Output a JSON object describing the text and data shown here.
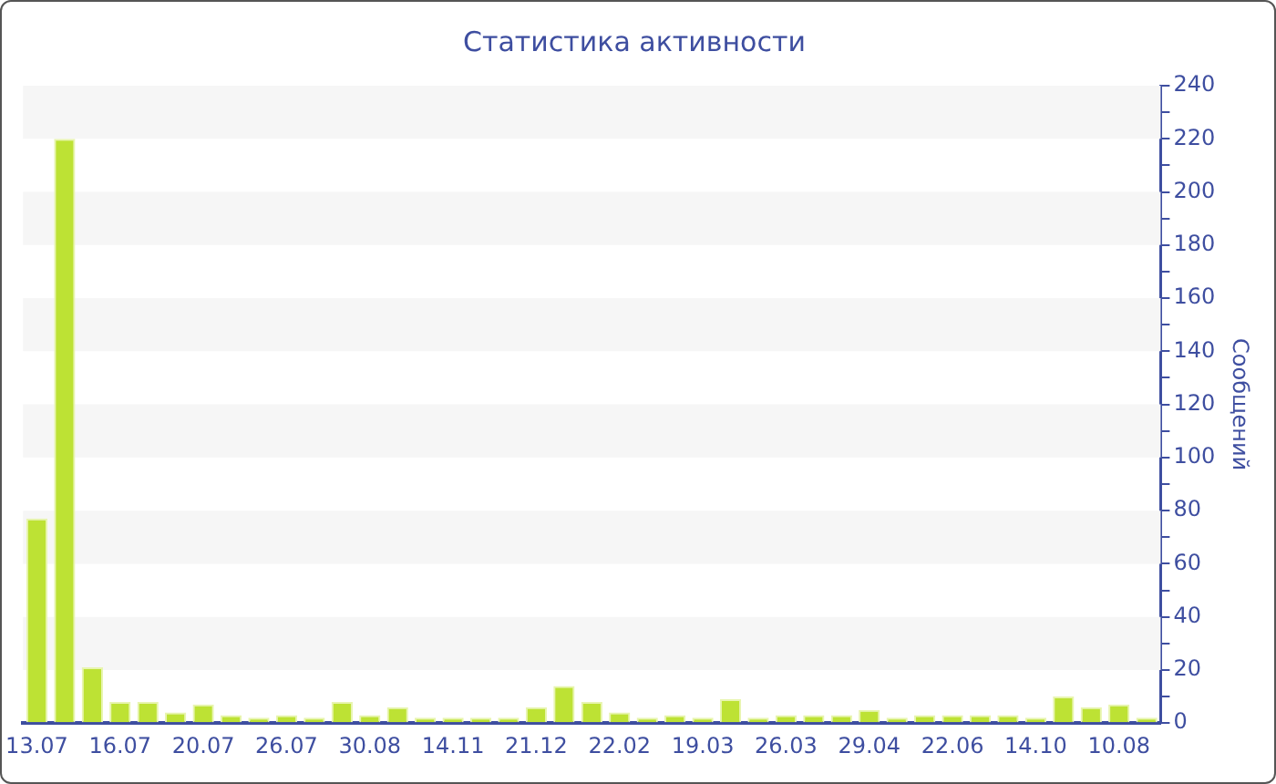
{
  "chart_data": {
    "type": "bar",
    "title": "Статистика активности",
    "ylabel": "Сообщений",
    "categories": [
      "13.07",
      null,
      null,
      "16.07",
      null,
      null,
      "20.07",
      null,
      null,
      "26.07",
      null,
      null,
      "30.08",
      null,
      null,
      "14.11",
      null,
      null,
      "21.12",
      null,
      null,
      "22.02",
      null,
      null,
      "19.03",
      null,
      null,
      "26.03",
      null,
      null,
      "29.04",
      null,
      null,
      "22.06",
      null,
      null,
      "14.10",
      null,
      null,
      "10.08",
      null
    ],
    "values": [
      77,
      220,
      21,
      8,
      8,
      4,
      7,
      3,
      2,
      3,
      2,
      8,
      3,
      6,
      2,
      2,
      2,
      2,
      6,
      14,
      8,
      4,
      2,
      3,
      2,
      9,
      2,
      3,
      3,
      3,
      5,
      2,
      3,
      3,
      3,
      3,
      2,
      10,
      6,
      7,
      2
    ],
    "color": "#bde234",
    "ylim": [
      0,
      240
    ],
    "yticks": [
      0,
      {
        "value": 10,
        "label": null
      },
      20,
      {
        "value": 30,
        "label": null
      },
      40,
      {
        "value": 50,
        "label": null
      },
      60,
      {
        "value": 70,
        "label": null
      },
      80,
      {
        "value": 90,
        "label": null
      },
      100,
      {
        "value": 110,
        "label": null
      },
      120,
      {
        "value": 130,
        "label": null
      },
      140,
      {
        "value": 150,
        "label": null
      },
      160,
      {
        "value": 170,
        "label": null
      },
      180,
      {
        "value": 190,
        "label": null
      },
      200,
      {
        "value": 210,
        "label": null
      },
      220,
      {
        "value": 230,
        "label": null
      },
      240
    ],
    "bands": [
      {
        "axis": "y",
        "from": 220,
        "to": 240,
        "color": "#f6f6f6"
      },
      {
        "axis": "y",
        "from": 180,
        "to": 200,
        "color": "#f6f6f6"
      },
      {
        "axis": "y",
        "from": 140,
        "to": 160,
        "color": "#f6f6f6"
      },
      {
        "axis": "y",
        "from": 100,
        "to": 120,
        "color": "#f6f6f6"
      },
      {
        "axis": "y",
        "from": 60,
        "to": 80,
        "color": "#f6f6f6"
      },
      {
        "axis": "y",
        "from": 20,
        "to": 40,
        "color": "#f6f6f6"
      }
    ],
    "legend": false
  }
}
